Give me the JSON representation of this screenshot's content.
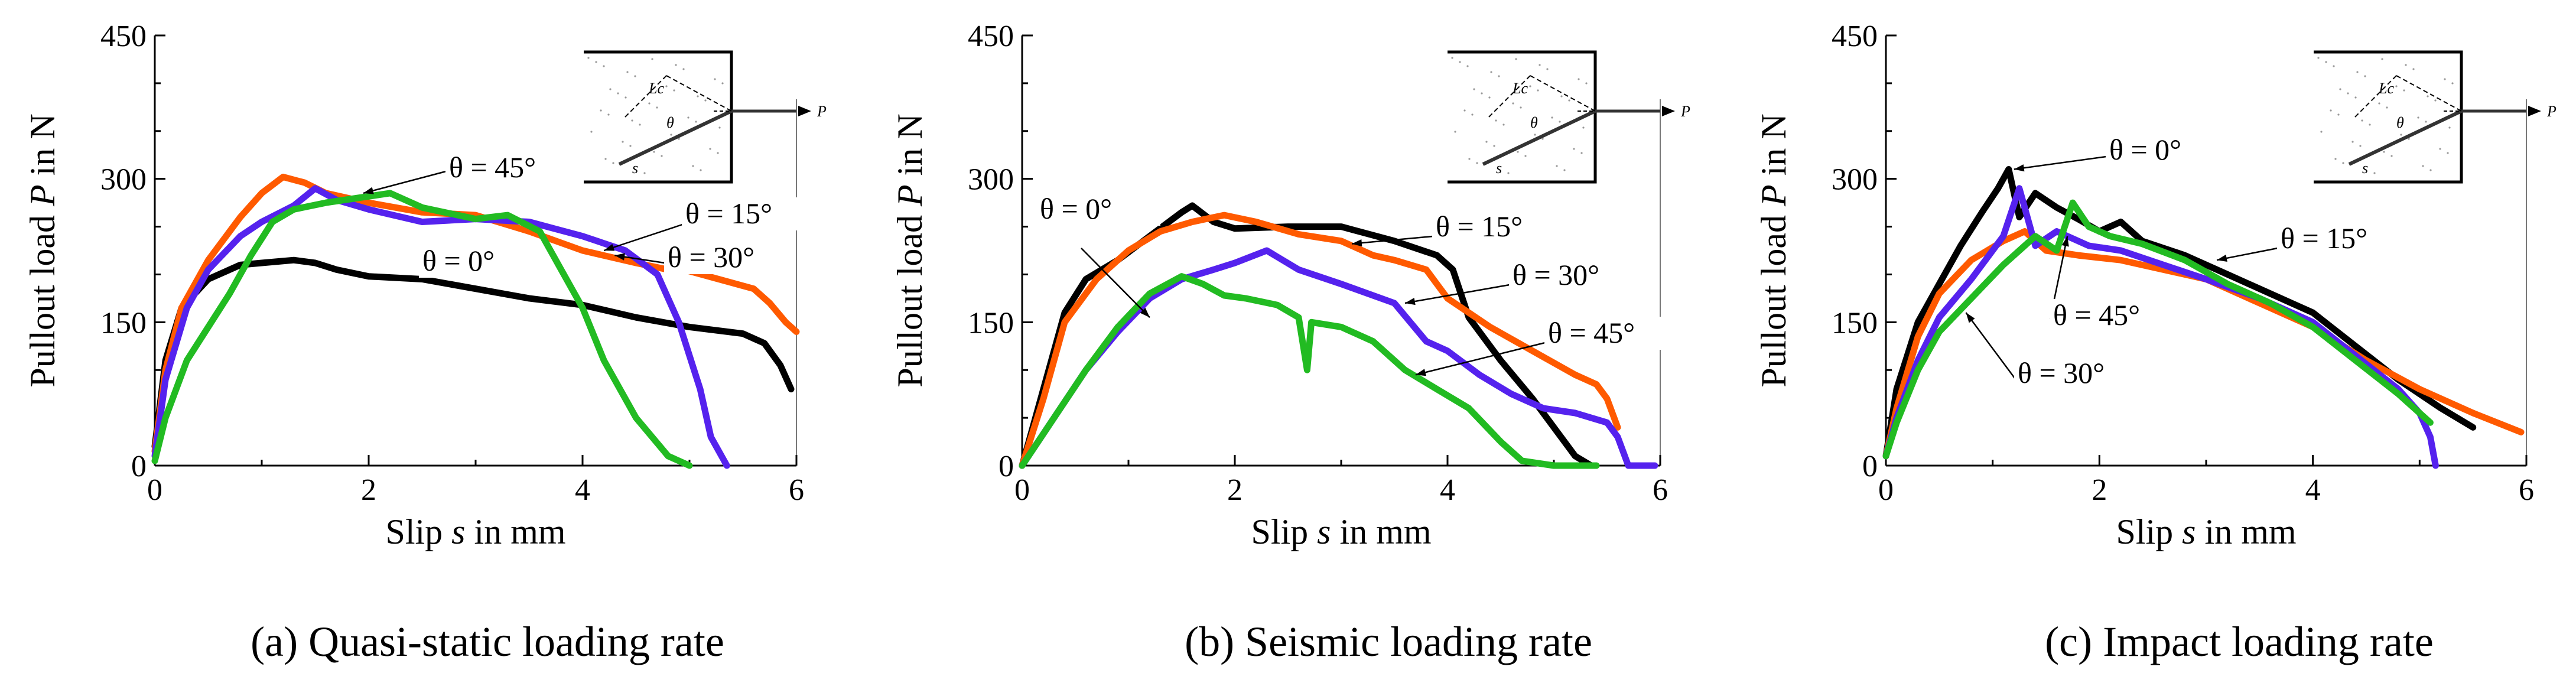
{
  "chart_data": [
    {
      "type": "line",
      "caption": "(a) Quasi-static loading rate",
      "xlabel_prefix": "Slip ",
      "xlabel_var": "s",
      "xlabel_suffix": " in mm",
      "ylabel_prefix": "Pullout load ",
      "ylabel_var": "P",
      "ylabel_suffix": " in N",
      "xlim": [
        0,
        6
      ],
      "ylim": [
        0,
        450
      ],
      "xticks": [
        0,
        2,
        4,
        6
      ],
      "yticks": [
        0,
        150,
        300,
        450
      ],
      "series": [
        {
          "name": "θ = 0°",
          "color": "#000000",
          "points": [
            [
              0,
              20
            ],
            [
              0.1,
              110
            ],
            [
              0.25,
              165
            ],
            [
              0.5,
              195
            ],
            [
              0.8,
              210
            ],
            [
              1.0,
              212
            ],
            [
              1.3,
              215
            ],
            [
              1.5,
              212
            ],
            [
              1.7,
              205
            ],
            [
              2.0,
              198
            ],
            [
              2.5,
              195
            ],
            [
              3.0,
              185
            ],
            [
              3.5,
              175
            ],
            [
              4.0,
              168
            ],
            [
              4.5,
              155
            ],
            [
              5.0,
              145
            ],
            [
              5.5,
              138
            ],
            [
              5.7,
              128
            ],
            [
              5.85,
              105
            ],
            [
              5.95,
              80
            ]
          ]
        },
        {
          "name": "θ = 15°",
          "color": "#ff5a00",
          "points": [
            [
              0,
              15
            ],
            [
              0.1,
              100
            ],
            [
              0.25,
              165
            ],
            [
              0.5,
              215
            ],
            [
              0.8,
              260
            ],
            [
              1.0,
              285
            ],
            [
              1.2,
              302
            ],
            [
              1.4,
              296
            ],
            [
              1.6,
              285
            ],
            [
              2.0,
              275
            ],
            [
              2.5,
              265
            ],
            [
              3.0,
              262
            ],
            [
              3.5,
              245
            ],
            [
              4.0,
              225
            ],
            [
              4.5,
              212
            ],
            [
              4.8,
              205
            ],
            [
              4.95,
              205
            ],
            [
              5.6,
              185
            ],
            [
              5.75,
              170
            ],
            [
              5.9,
              150
            ],
            [
              6.0,
              140
            ]
          ]
        },
        {
          "name": "θ = 30°",
          "color": "#5522ee",
          "points": [
            [
              0,
              10
            ],
            [
              0.1,
              90
            ],
            [
              0.3,
              165
            ],
            [
              0.5,
              205
            ],
            [
              0.8,
              240
            ],
            [
              1.0,
              255
            ],
            [
              1.3,
              272
            ],
            [
              1.5,
              290
            ],
            [
              1.7,
              278
            ],
            [
              2.0,
              268
            ],
            [
              2.5,
              255
            ],
            [
              3.0,
              258
            ],
            [
              3.5,
              255
            ],
            [
              4.0,
              240
            ],
            [
              4.4,
              225
            ],
            [
              4.7,
              200
            ],
            [
              4.9,
              150
            ],
            [
              5.1,
              80
            ],
            [
              5.2,
              30
            ],
            [
              5.35,
              0
            ]
          ]
        },
        {
          "name": "θ = 45°",
          "color": "#22bb22",
          "points": [
            [
              0,
              5
            ],
            [
              0.1,
              50
            ],
            [
              0.3,
              110
            ],
            [
              0.5,
              145
            ],
            [
              0.7,
              180
            ],
            [
              0.9,
              220
            ],
            [
              1.1,
              255
            ],
            [
              1.3,
              268
            ],
            [
              1.6,
              275
            ],
            [
              1.9,
              280
            ],
            [
              2.2,
              285
            ],
            [
              2.5,
              270
            ],
            [
              3.0,
              258
            ],
            [
              3.3,
              262
            ],
            [
              3.6,
              245
            ],
            [
              3.8,
              205
            ],
            [
              4.0,
              165
            ],
            [
              4.2,
              110
            ],
            [
              4.5,
              50
            ],
            [
              4.8,
              10
            ],
            [
              5.0,
              0
            ]
          ]
        }
      ],
      "annotations": [
        "θ = 45°",
        "θ = 15°",
        "θ = 30°",
        "θ = 0°"
      ]
    },
    {
      "type": "line",
      "caption": "(b) Seismic loading rate",
      "xlabel_prefix": "Slip ",
      "xlabel_var": "s",
      "xlabel_suffix": " in mm",
      "ylabel_prefix": "Pullout load ",
      "ylabel_var": "P",
      "ylabel_suffix": " in N",
      "xlim": [
        0,
        6
      ],
      "ylim": [
        0,
        450
      ],
      "xticks": [
        0,
        2,
        4,
        6
      ],
      "yticks": [
        0,
        150,
        300,
        450
      ],
      "series": [
        {
          "name": "θ = 0°",
          "color": "#000000",
          "points": [
            [
              0,
              0
            ],
            [
              0.2,
              80
            ],
            [
              0.4,
              160
            ],
            [
              0.6,
              195
            ],
            [
              0.9,
              215
            ],
            [
              1.2,
              240
            ],
            [
              1.5,
              265
            ],
            [
              1.6,
              272
            ],
            [
              1.8,
              255
            ],
            [
              2.0,
              248
            ],
            [
              2.5,
              250
            ],
            [
              3.0,
              250
            ],
            [
              3.5,
              235
            ],
            [
              3.9,
              220
            ],
            [
              4.05,
              205
            ],
            [
              4.2,
              155
            ],
            [
              4.5,
              110
            ],
            [
              4.8,
              70
            ],
            [
              5.0,
              40
            ],
            [
              5.2,
              10
            ],
            [
              5.35,
              0
            ]
          ]
        },
        {
          "name": "θ = 15°",
          "color": "#ff5a00",
          "points": [
            [
              0,
              0
            ],
            [
              0.2,
              70
            ],
            [
              0.4,
              150
            ],
            [
              0.7,
              195
            ],
            [
              1.0,
              225
            ],
            [
              1.3,
              245
            ],
            [
              1.6,
              255
            ],
            [
              1.9,
              262
            ],
            [
              2.2,
              255
            ],
            [
              2.6,
              242
            ],
            [
              3.0,
              235
            ],
            [
              3.3,
              220
            ],
            [
              3.5,
              215
            ],
            [
              3.8,
              205
            ],
            [
              4.0,
              175
            ],
            [
              4.4,
              145
            ],
            [
              4.8,
              120
            ],
            [
              5.2,
              95
            ],
            [
              5.4,
              85
            ],
            [
              5.5,
              70
            ],
            [
              5.6,
              40
            ]
          ]
        },
        {
          "name": "θ = 30°",
          "color": "#5522ee",
          "points": [
            [
              0,
              0
            ],
            [
              0.3,
              50
            ],
            [
              0.6,
              100
            ],
            [
              0.9,
              140
            ],
            [
              1.2,
              175
            ],
            [
              1.5,
              195
            ],
            [
              1.8,
              205
            ],
            [
              2.0,
              212
            ],
            [
              2.3,
              225
            ],
            [
              2.6,
              205
            ],
            [
              3.0,
              190
            ],
            [
              3.5,
              170
            ],
            [
              3.8,
              130
            ],
            [
              4.0,
              120
            ],
            [
              4.3,
              95
            ],
            [
              4.6,
              75
            ],
            [
              4.9,
              60
            ],
            [
              5.2,
              55
            ],
            [
              5.5,
              45
            ],
            [
              5.6,
              30
            ],
            [
              5.7,
              0
            ],
            [
              5.95,
              0
            ]
          ]
        },
        {
          "name": "θ = 45°",
          "color": "#22bb22",
          "points": [
            [
              0,
              0
            ],
            [
              0.3,
              50
            ],
            [
              0.6,
              100
            ],
            [
              0.9,
              145
            ],
            [
              1.2,
              180
            ],
            [
              1.5,
              198
            ],
            [
              1.7,
              190
            ],
            [
              1.9,
              178
            ],
            [
              2.1,
              175
            ],
            [
              2.4,
              168
            ],
            [
              2.6,
              155
            ],
            [
              2.68,
              100
            ],
            [
              2.72,
              150
            ],
            [
              3.0,
              145
            ],
            [
              3.3,
              130
            ],
            [
              3.6,
              100
            ],
            [
              3.9,
              80
            ],
            [
              4.2,
              60
            ],
            [
              4.5,
              25
            ],
            [
              4.7,
              5
            ],
            [
              5.0,
              0
            ],
            [
              5.4,
              0
            ]
          ]
        }
      ],
      "annotations": [
        "θ = 0°",
        "θ = 15°",
        "θ = 30°",
        "θ = 45°"
      ]
    },
    {
      "type": "line",
      "caption": "(c) Impact loading rate",
      "xlabel_prefix": "Slip ",
      "xlabel_var": "s",
      "xlabel_suffix": " in mm",
      "ylabel_prefix": "Pullout load ",
      "ylabel_var": "P",
      "ylabel_suffix": " in N",
      "xlim": [
        0,
        6
      ],
      "ylim": [
        0,
        450
      ],
      "xticks": [
        0,
        2,
        4,
        6
      ],
      "yticks": [
        0,
        150,
        300,
        450
      ],
      "series": [
        {
          "name": "θ = 0°",
          "color": "#000000",
          "points": [
            [
              0,
              10
            ],
            [
              0.1,
              80
            ],
            [
              0.3,
              150
            ],
            [
              0.5,
              190
            ],
            [
              0.7,
              230
            ],
            [
              0.9,
              265
            ],
            [
              1.05,
              290
            ],
            [
              1.15,
              310
            ],
            [
              1.25,
              260
            ],
            [
              1.4,
              285
            ],
            [
              1.6,
              270
            ],
            [
              1.8,
              258
            ],
            [
              2.0,
              245
            ],
            [
              2.2,
              255
            ],
            [
              2.4,
              235
            ],
            [
              2.8,
              220
            ],
            [
              3.2,
              200
            ],
            [
              3.6,
              180
            ],
            [
              4.0,
              160
            ],
            [
              4.4,
              125
            ],
            [
              4.8,
              90
            ],
            [
              5.2,
              60
            ],
            [
              5.5,
              40
            ]
          ]
        },
        {
          "name": "θ = 15°",
          "color": "#ff5a00",
          "points": [
            [
              0,
              10
            ],
            [
              0.1,
              60
            ],
            [
              0.3,
              135
            ],
            [
              0.5,
              180
            ],
            [
              0.8,
              215
            ],
            [
              1.1,
              235
            ],
            [
              1.3,
              245
            ],
            [
              1.5,
              225
            ],
            [
              1.8,
              220
            ],
            [
              2.2,
              215
            ],
            [
              2.6,
              205
            ],
            [
              3.0,
              195
            ],
            [
              3.5,
              170
            ],
            [
              4.0,
              145
            ],
            [
              4.5,
              110
            ],
            [
              5.0,
              80
            ],
            [
              5.5,
              55
            ],
            [
              5.95,
              35
            ]
          ]
        },
        {
          "name": "θ = 30°",
          "color": "#5522ee",
          "points": [
            [
              0,
              10
            ],
            [
              0.1,
              50
            ],
            [
              0.3,
              110
            ],
            [
              0.5,
              155
            ],
            [
              0.8,
              195
            ],
            [
              1.1,
              240
            ],
            [
              1.25,
              290
            ],
            [
              1.4,
              230
            ],
            [
              1.6,
              245
            ],
            [
              1.9,
              230
            ],
            [
              2.2,
              225
            ],
            [
              2.6,
              210
            ],
            [
              3.0,
              195
            ],
            [
              3.5,
              175
            ],
            [
              4.0,
              150
            ],
            [
              4.4,
              115
            ],
            [
              4.8,
              80
            ],
            [
              5.0,
              55
            ],
            [
              5.1,
              30
            ],
            [
              5.15,
              0
            ]
          ]
        },
        {
          "name": "θ = 45°",
          "color": "#22bb22",
          "points": [
            [
              0,
              10
            ],
            [
              0.1,
              45
            ],
            [
              0.3,
              100
            ],
            [
              0.5,
              140
            ],
            [
              0.8,
              175
            ],
            [
              1.1,
              210
            ],
            [
              1.4,
              240
            ],
            [
              1.6,
              225
            ],
            [
              1.75,
              275
            ],
            [
              1.9,
              250
            ],
            [
              2.1,
              240
            ],
            [
              2.4,
              232
            ],
            [
              2.8,
              215
            ],
            [
              3.2,
              190
            ],
            [
              3.6,
              170
            ],
            [
              4.0,
              145
            ],
            [
              4.4,
              110
            ],
            [
              4.8,
              75
            ],
            [
              5.0,
              55
            ],
            [
              5.1,
              45
            ]
          ]
        }
      ],
      "annotations": [
        "θ = 0°",
        "θ = 15°",
        "θ = 45°",
        "θ = 30°"
      ]
    }
  ],
  "inset": {
    "label_lc": "Lc",
    "label_p": "P",
    "label_s": "s",
    "label_theta": "θ"
  }
}
